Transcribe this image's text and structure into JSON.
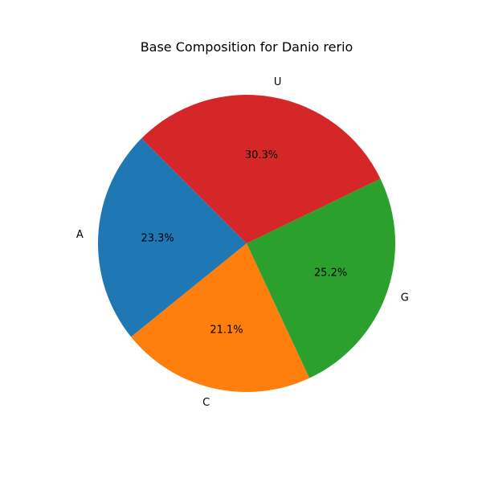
{
  "chart_data": {
    "type": "pie",
    "title": "Base Composition for Danio rerio",
    "start_angle_deg": 135,
    "direction": "counterclockwise",
    "slices": [
      {
        "label": "A",
        "value": 23.3,
        "pct_text": "23.3%",
        "color": "#1f77b4"
      },
      {
        "label": "C",
        "value": 21.1,
        "pct_text": "21.1%",
        "color": "#ff7f0e"
      },
      {
        "label": "G",
        "value": 25.2,
        "pct_text": "25.2%",
        "color": "#2ca02c"
      },
      {
        "label": "U",
        "value": 30.3,
        "pct_text": "30.3%",
        "color": "#d62728"
      }
    ]
  }
}
